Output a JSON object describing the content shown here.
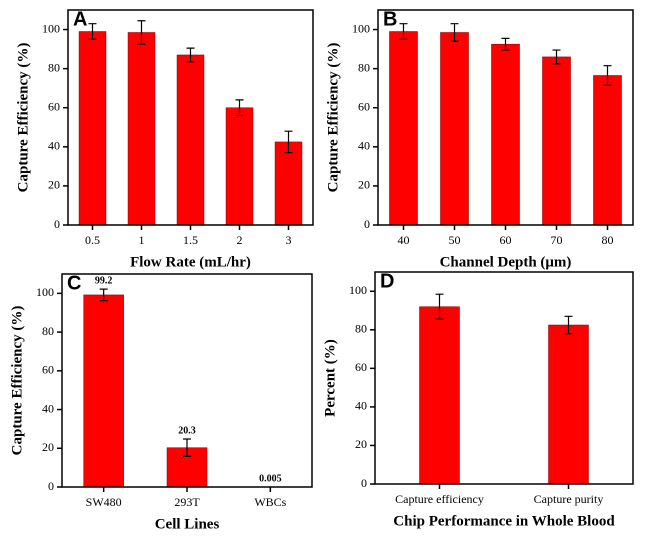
{
  "chart_data": [
    {
      "type": "bar",
      "panel": "A",
      "x_label": "Flow Rate (mL/hr)",
      "y_label": "Capture Efficiency (%)",
      "categories": [
        "0.5",
        "1",
        "1.5",
        "2",
        "3"
      ],
      "values": [
        99,
        98.5,
        87,
        60,
        42.5
      ],
      "errors": [
        4,
        6,
        3.5,
        4,
        5.5
      ],
      "color": "#ff0000",
      "ylim": [
        0,
        110
      ],
      "yticks": [
        0,
        20,
        40,
        60,
        80,
        100
      ]
    },
    {
      "type": "bar",
      "panel": "B",
      "x_label": "Channel Depth (μm)",
      "y_label": "Capture Efficiency (%)",
      "categories": [
        "40",
        "50",
        "60",
        "70",
        "80"
      ],
      "values": [
        99,
        98.5,
        92.5,
        86,
        76.5
      ],
      "errors": [
        4,
        4.5,
        3,
        3.5,
        5
      ],
      "color": "#ff0000",
      "ylim": [
        0,
        110
      ],
      "yticks": [
        0,
        20,
        40,
        60,
        80,
        100
      ]
    },
    {
      "type": "bar",
      "panel": "C",
      "x_label": "Cell Lines",
      "y_label": "Capture Efficiency (%)",
      "categories": [
        "SW480",
        "293T",
        "WBCs"
      ],
      "values": [
        99.2,
        20.3,
        0.005
      ],
      "errors": [
        3,
        4.5,
        0
      ],
      "color": "#ff0000",
      "ylim": [
        0,
        110
      ],
      "yticks": [
        0,
        20,
        40,
        60,
        80,
        100
      ],
      "data_labels": true
    },
    {
      "type": "bar",
      "panel": "D",
      "x_label": "Chip Performance in Whole Blood",
      "y_label": "Percent (%)",
      "categories": [
        "Capture efficiency",
        "Capture purity"
      ],
      "values": [
        92,
        82.5
      ],
      "errors": [
        6.5,
        4.5
      ],
      "color": "#ff0000",
      "ylim": [
        0,
        110
      ],
      "yticks": [
        0,
        20,
        40,
        60,
        80,
        100
      ]
    }
  ]
}
